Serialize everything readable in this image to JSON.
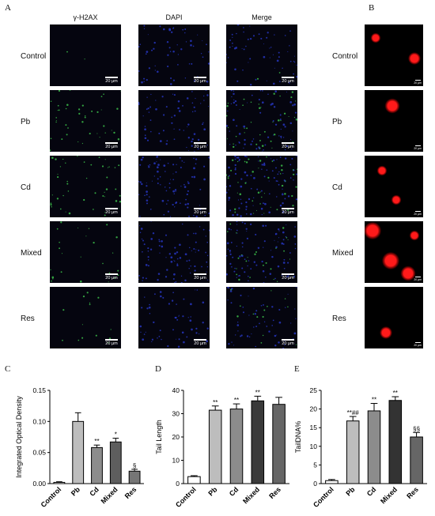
{
  "figure": {
    "panel_letters": {
      "a": "A",
      "b": "B",
      "c": "C",
      "d": "D",
      "e": "E"
    },
    "col_headers": [
      "γ-H2AX",
      "DAPI",
      "Merge"
    ],
    "row_labels": [
      "Control",
      "Pb",
      "Cd",
      "Mixed",
      "Res"
    ],
    "scale_bar_text": "20 μm",
    "comet_scale_text": "20 μm",
    "colors": {
      "green": "#3cbf4a",
      "blue": "#2838c8",
      "red": "#ff1a1a"
    }
  },
  "chart_data": [
    {
      "type": "bar",
      "panel": "C",
      "ylabel": "Integrated Optical Density",
      "categories": [
        "Control",
        "Pb",
        "Cd",
        "Mixed",
        "Res"
      ],
      "values": [
        0.002,
        0.1,
        0.058,
        0.067,
        0.02
      ],
      "errors": [
        0.001,
        0.014,
        0.004,
        0.006,
        0.003
      ],
      "annotations": [
        "",
        "",
        "**",
        "*",
        "§"
      ],
      "ylim": [
        0,
        0.15
      ],
      "yticks": [
        "0.00",
        "0.05",
        "0.10",
        "0.15"
      ],
      "fills": [
        "#ffffff",
        "#bdbdbd",
        "#8c8c8c",
        "#5e5e5e",
        "#767676"
      ]
    },
    {
      "type": "bar",
      "panel": "D",
      "ylabel": "Tail Length",
      "categories": [
        "Control",
        "Pb",
        "Cd",
        "Mixed",
        "Res"
      ],
      "values": [
        3,
        31.5,
        32,
        35.5,
        34
      ],
      "errors": [
        0.4,
        1.8,
        2.2,
        2.0,
        3.0
      ],
      "annotations": [
        "",
        "**",
        "**",
        "**",
        ""
      ],
      "ylim": [
        0,
        40
      ],
      "yticks": [
        "0",
        "10",
        "20",
        "30",
        "40"
      ],
      "fills": [
        "#ffffff",
        "#bdbdbd",
        "#8c8c8c",
        "#3a3a3a",
        "#666666"
      ]
    },
    {
      "type": "bar",
      "panel": "E",
      "ylabel": "TailDNA%",
      "categories": [
        "Control",
        "Pb",
        "Cd",
        "Mixed",
        "Res"
      ],
      "values": [
        0.8,
        16.8,
        19.5,
        22.3,
        12.5
      ],
      "errors": [
        0.3,
        1.2,
        2.0,
        1.0,
        1.2
      ],
      "annotations": [
        "",
        "**##",
        "**",
        "**",
        "§§"
      ],
      "ylim": [
        0,
        25
      ],
      "yticks": [
        "0",
        "5",
        "10",
        "15",
        "20",
        "25"
      ],
      "fills": [
        "#ffffff",
        "#bdbdbd",
        "#8c8c8c",
        "#333333",
        "#666666"
      ]
    }
  ]
}
